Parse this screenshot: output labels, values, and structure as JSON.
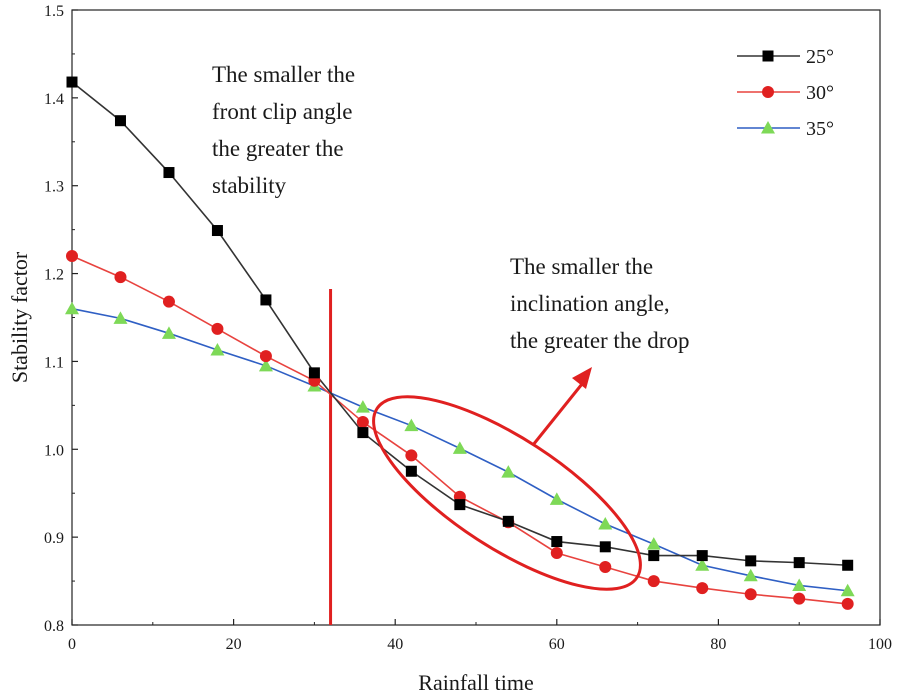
{
  "chart_data": {
    "type": "line",
    "xlabel": "Rainfall time",
    "ylabel": "Stability factor",
    "xlim": [
      0,
      100
    ],
    "ylim": [
      0.8,
      1.5
    ],
    "xticks": [
      0,
      20,
      40,
      60,
      80,
      100
    ],
    "yticks": [
      0.8,
      0.9,
      1.0,
      1.1,
      1.2,
      1.3,
      1.4,
      1.5
    ],
    "ytick_labels": [
      "0.8",
      "0.9",
      "1.0",
      "1.1",
      "1.2",
      "1.3",
      "1.4",
      "1.5"
    ],
    "legend_position": "top-right",
    "grid": false,
    "series": [
      {
        "name": "25°",
        "color": "#333333",
        "marker_color": "#000000",
        "marker": "square",
        "x": [
          0,
          6,
          12,
          18,
          24,
          30,
          36,
          42,
          48,
          54,
          60,
          66,
          72,
          78,
          84,
          90,
          96
        ],
        "y": [
          1.418,
          1.374,
          1.315,
          1.249,
          1.17,
          1.087,
          1.019,
          0.975,
          0.937,
          0.918,
          0.895,
          0.889,
          0.879,
          0.879,
          0.873,
          0.871,
          0.868
        ]
      },
      {
        "name": "30°",
        "color": "#e8433f",
        "marker_color": "#e02020",
        "marker": "circle",
        "x": [
          0,
          6,
          12,
          18,
          24,
          30,
          36,
          42,
          48,
          54,
          60,
          66,
          72,
          78,
          84,
          90,
          96
        ],
        "y": [
          1.22,
          1.196,
          1.168,
          1.137,
          1.106,
          1.078,
          1.031,
          0.993,
          0.946,
          0.917,
          0.882,
          0.866,
          0.85,
          0.842,
          0.835,
          0.83,
          0.824
        ]
      },
      {
        "name": "35°",
        "color": "#2f5fc4",
        "marker_color": "#7ed957",
        "marker": "triangle",
        "x": [
          0,
          6,
          12,
          18,
          24,
          30,
          36,
          42,
          48,
          54,
          60,
          66,
          72,
          78,
          84,
          90,
          96
        ],
        "y": [
          1.16,
          1.149,
          1.132,
          1.113,
          1.095,
          1.072,
          1.048,
          1.027,
          1.001,
          0.974,
          0.943,
          0.915,
          0.892,
          0.868,
          0.856,
          0.845,
          0.839
        ]
      }
    ],
    "reference_line": {
      "x": 32,
      "color": "#e02020"
    },
    "annotations": [
      {
        "lines": [
          "The smaller the",
          "front clip angle",
          "the greater the",
          "stability"
        ]
      },
      {
        "lines": [
          "The smaller the",
          "inclination angle,",
          "the greater the drop"
        ]
      }
    ],
    "highlight_color": "#e02020"
  }
}
